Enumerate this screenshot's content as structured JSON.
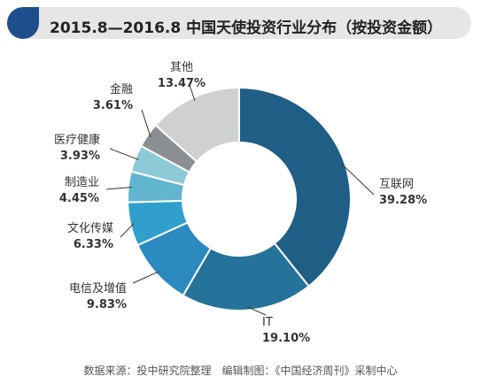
{
  "title": "2015.8—2016.8 中国天使投资行业分布（按投资金额）",
  "source_note": "数据来源：投中研究院整理　编辑制图：《中国经济周刊》采制中心",
  "chart_data": {
    "type": "pie",
    "title": "2015.8—2016.8 中国天使投资行业分布（按投资金额）",
    "donut": true,
    "unit": "%",
    "slices": [
      {
        "label": "互联网",
        "value": 39.28,
        "value_label": "39.28%",
        "color": "#1f5f86"
      },
      {
        "label": "IT",
        "value": 19.1,
        "value_label": "19.10%",
        "color": "#25739a"
      },
      {
        "label": "电信及增值",
        "value": 9.83,
        "value_label": "9.83%",
        "color": "#2b8bc0"
      },
      {
        "label": "文化传媒",
        "value": 6.33,
        "value_label": "6.33%",
        "color": "#30a0cb"
      },
      {
        "label": "制造业",
        "value": 4.45,
        "value_label": "4.45%",
        "color": "#62b5cf"
      },
      {
        "label": "医疗健康",
        "value": 3.93,
        "value_label": "3.93%",
        "color": "#8dcad8"
      },
      {
        "label": "金融",
        "value": 3.61,
        "value_label": "3.61%",
        "color": "#8c8f92"
      },
      {
        "label": "其他",
        "value": 13.47,
        "value_label": "13.47%",
        "color": "#cfd0d1"
      }
    ]
  }
}
